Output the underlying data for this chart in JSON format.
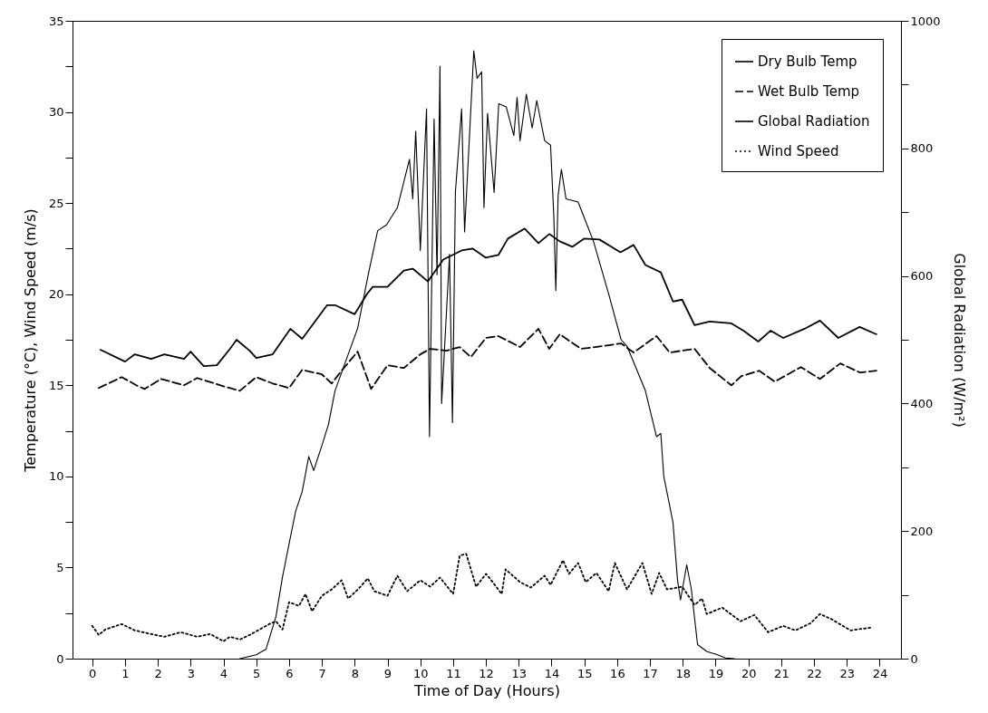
{
  "chart_data": {
    "type": "line",
    "xlabel": "Time of Day (Hours)",
    "ylabel": "Temperature (°C), Wind Speed (m/s)",
    "y2label": "Global Radiation (W/m²)",
    "xlim": [
      -0.6,
      24.65
    ],
    "xticks": [
      0,
      1,
      2,
      3,
      4,
      5,
      6,
      7,
      8,
      9,
      10,
      11,
      12,
      13,
      14,
      15,
      16,
      17,
      18,
      19,
      20,
      21,
      22,
      23,
      24
    ],
    "ylim": [
      0,
      35
    ],
    "yticks": [
      0,
      {
        "value": 2.5,
        "label": null
      },
      5,
      {
        "value": 7.5,
        "label": null
      },
      10,
      {
        "value": 12.5,
        "label": null
      },
      15,
      {
        "value": 17.5,
        "label": null
      },
      20,
      {
        "value": 22.5,
        "label": null
      },
      25,
      {
        "value": 27.5,
        "label": null
      },
      30,
      {
        "value": 32.5,
        "label": null
      },
      35
    ],
    "y2lim": [
      0,
      1000
    ],
    "y2ticks": [
      0,
      {
        "value": 100,
        "label": null
      },
      200,
      {
        "value": 300,
        "label": null
      },
      400,
      {
        "value": 500,
        "label": null
      },
      600,
      {
        "value": 700,
        "label": null
      },
      800,
      {
        "value": 900,
        "label": null
      },
      1000
    ],
    "legend": "top right",
    "series": [
      {
        "name": "Dry Bulb Temp",
        "color": "#000000",
        "line_style": "solid",
        "x": [
          0.25,
          1.0,
          1.3,
          1.8,
          2.2,
          2.8,
          3.0,
          3.4,
          3.8,
          4.2,
          4.4,
          4.8,
          5.0,
          5.5,
          6.04,
          6.4,
          7.16,
          7.4,
          8.0,
          8.37,
          8.55,
          9.0,
          9.5,
          9.77,
          10.23,
          10.7,
          11.26,
          11.6,
          12.0,
          12.38,
          12.67,
          13.18,
          13.6,
          13.93,
          14.25,
          14.63,
          15.0,
          15.46,
          16.1,
          16.5,
          16.86,
          17.33,
          17.7,
          17.98,
          18.36,
          18.82,
          19.48,
          19.85,
          20.3,
          20.68,
          21.06,
          21.71,
          22.18,
          22.74,
          23.39,
          23.9
        ],
        "values": [
          16.95,
          16.3,
          16.7,
          16.45,
          16.7,
          16.45,
          16.85,
          16.05,
          16.1,
          17.0,
          17.5,
          16.9,
          16.5,
          16.7,
          18.1,
          17.55,
          19.4,
          19.4,
          18.9,
          20.0,
          20.4,
          20.4,
          21.3,
          21.4,
          20.7,
          21.9,
          22.4,
          22.5,
          22.0,
          22.15,
          23.05,
          23.6,
          22.8,
          23.3,
          22.9,
          22.6,
          23.05,
          23.0,
          22.3,
          22.7,
          21.6,
          21.2,
          19.6,
          19.7,
          18.3,
          18.5,
          18.4,
          18.0,
          17.4,
          18.0,
          17.6,
          18.1,
          18.55,
          17.6,
          18.2,
          17.8
        ]
      },
      {
        "name": "Wet Bulb Temp",
        "color": "#000000",
        "line_style": "dashed",
        "x": [
          0.2,
          0.9,
          1.4,
          1.6,
          2.1,
          2.8,
          3.2,
          4.0,
          4.5,
          5.0,
          5.5,
          6.0,
          6.4,
          7.0,
          7.3,
          7.6,
          8.09,
          8.5,
          9.0,
          9.5,
          10.0,
          10.3,
          10.8,
          11.2,
          11.54,
          12.0,
          12.38,
          13.04,
          13.6,
          13.93,
          14.25,
          14.9,
          15.56,
          16.12,
          16.5,
          17.2,
          17.6,
          18.36,
          18.82,
          19.48,
          19.78,
          20.33,
          20.8,
          21.6,
          22.18,
          22.8,
          23.4,
          23.9
        ],
        "values": [
          14.85,
          15.45,
          14.95,
          14.8,
          15.35,
          15.0,
          15.4,
          14.95,
          14.7,
          15.45,
          15.1,
          14.85,
          15.85,
          15.6,
          15.1,
          15.8,
          16.85,
          14.8,
          16.1,
          15.95,
          16.7,
          17.0,
          16.9,
          17.1,
          16.55,
          17.6,
          17.7,
          17.1,
          18.1,
          17.0,
          17.8,
          17.0,
          17.15,
          17.3,
          16.8,
          17.7,
          16.8,
          17.0,
          15.95,
          15.0,
          15.5,
          15.8,
          15.2,
          16.0,
          15.35,
          16.2,
          15.7,
          15.8
        ]
      },
      {
        "name": "Global Radiation",
        "color": "#000000",
        "line_style": "solid",
        "axis": "y2",
        "x": [
          4.5,
          5.0,
          5.3,
          5.6,
          5.8,
          6.0,
          6.2,
          6.4,
          6.6,
          6.75,
          7.0,
          7.2,
          7.4,
          8.09,
          8.42,
          8.7,
          8.97,
          9.3,
          9.67,
          9.77,
          9.86,
          10.0,
          10.19,
          10.28,
          10.42,
          10.51,
          10.6,
          10.65,
          10.89,
          10.98,
          11.07,
          11.26,
          11.35,
          11.63,
          11.73,
          11.87,
          11.94,
          12.05,
          12.25,
          12.39,
          12.62,
          12.85,
          12.95,
          13.04,
          13.23,
          13.41,
          13.55,
          13.79,
          13.97,
          14.07,
          14.13,
          14.2,
          14.3,
          14.44,
          14.81,
          15.28,
          15.74,
          16.12,
          16.3,
          16.86,
          17.2,
          17.33,
          17.42,
          17.7,
          17.84,
          17.93,
          18.12,
          18.26,
          18.45,
          18.74,
          19.0,
          19.3,
          19.57
        ],
        "values": [
          0,
          6,
          15,
          66,
          128,
          180,
          231,
          262,
          317,
          295,
          334,
          367,
          420,
          518,
          604,
          671,
          680,
          707,
          783,
          721,
          827,
          640,
          862,
          348,
          846,
          602,
          929,
          400,
          634,
          370,
          732,
          862,
          669,
          953,
          910,
          920,
          707,
          855,
          731,
          870,
          865,
          820,
          880,
          812,
          885,
          832,
          875,
          812,
          805,
          692,
          577,
          726,
          767,
          721,
          716,
          654,
          572,
          500,
          490,
          420,
          348,
          353,
          286,
          214,
          123,
          92,
          147,
          109,
          22,
          11,
          7,
          1,
          0
        ]
      },
      {
        "name": "Wind Speed",
        "color": "#000000",
        "line_style": "dotted",
        "x": [
          0.0,
          0.2,
          0.4,
          0.9,
          1.3,
          1.8,
          2.2,
          2.7,
          3.2,
          3.6,
          4.0,
          4.2,
          4.5,
          4.8,
          5.1,
          5.4,
          5.6,
          5.8,
          6.0,
          6.3,
          6.5,
          6.7,
          7.0,
          7.3,
          7.6,
          7.8,
          8.1,
          8.4,
          8.6,
          9.0,
          9.3,
          9.6,
          10.0,
          10.3,
          10.6,
          11.0,
          11.2,
          11.4,
          11.7,
          12.0,
          12.1,
          12.48,
          12.6,
          13.04,
          13.37,
          13.79,
          13.97,
          14.35,
          14.53,
          14.81,
          15.04,
          15.37,
          15.74,
          15.93,
          16.3,
          16.77,
          17.05,
          17.28,
          17.52,
          17.98,
          18.36,
          18.59,
          18.73,
          19.2,
          19.76,
          20.18,
          20.6,
          21.06,
          21.43,
          21.9,
          22.18,
          22.55,
          23.11,
          23.72
        ],
        "values": [
          1.8,
          1.3,
          1.6,
          1.9,
          1.55,
          1.35,
          1.2,
          1.45,
          1.2,
          1.35,
          0.95,
          1.2,
          1.05,
          1.3,
          1.6,
          1.9,
          2.05,
          1.6,
          3.1,
          2.9,
          3.55,
          2.6,
          3.45,
          3.8,
          4.3,
          3.3,
          3.8,
          4.4,
          3.7,
          3.45,
          4.55,
          3.7,
          4.3,
          3.95,
          4.45,
          3.55,
          5.65,
          5.75,
          3.95,
          4.65,
          4.45,
          3.55,
          4.9,
          4.2,
          3.9,
          4.55,
          4.05,
          5.4,
          4.65,
          5.25,
          4.2,
          4.7,
          3.7,
          5.25,
          3.8,
          5.25,
          3.55,
          4.7,
          3.8,
          3.95,
          2.95,
          3.3,
          2.45,
          2.8,
          2.05,
          2.4,
          1.45,
          1.8,
          1.55,
          1.95,
          2.45,
          2.15,
          1.55,
          1.7
        ]
      }
    ]
  }
}
